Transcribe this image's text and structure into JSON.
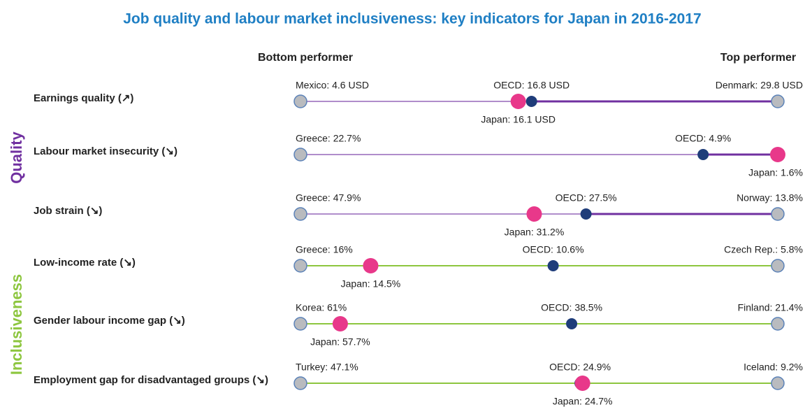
{
  "title": "Job quality and labour market inclusiveness: key indicators for Japan in 2016-2017",
  "bottom_header": "Bottom performer",
  "top_header": "Top performer",
  "groups": [
    {
      "name": "Quality",
      "color": "#7030a0",
      "rows": [
        {
          "label": "Earnings quality (↗)",
          "bottom": {
            "label": "Mexico: 4.6 USD",
            "value": 4.6
          },
          "top": {
            "label": "Denmark: 29.8 USD",
            "value": 29.8
          },
          "oecd": {
            "label": "OECD: 16.8 USD",
            "value": 16.8
          },
          "japan": {
            "label": "Japan: 16.1 USD",
            "value": 16.1
          }
        },
        {
          "label": "Labour market insecurity (↘)",
          "bottom": {
            "label": "Greece: 22.7%",
            "value": 22.7
          },
          "oecd": {
            "label": "OECD: 4.9%",
            "value": 4.9
          },
          "japan": {
            "label": "Japan: 1.6%",
            "value": 1.6
          }
        },
        {
          "label": "Job strain (↘)",
          "bottom": {
            "label": "Greece: 47.9%",
            "value": 47.9
          },
          "top": {
            "label": "Norway: 13.8%",
            "value": 13.8
          },
          "oecd": {
            "label": "OECD: 27.5%",
            "value": 27.5
          },
          "japan": {
            "label": "Japan: 31.2%",
            "value": 31.2
          }
        }
      ]
    },
    {
      "name": "Inclusiveness",
      "color": "#8dc63f",
      "rows": [
        {
          "label": "Low-income rate (↘)",
          "bottom": {
            "label": "Greece: 16%",
            "value": 16
          },
          "top": {
            "label": "Czech Rep.: 5.8%",
            "value": 5.8
          },
          "oecd": {
            "label": "OECD: 10.6%",
            "value": 10.6
          },
          "japan": {
            "label": "Japan: 14.5%",
            "value": 14.5
          }
        },
        {
          "label": "Gender labour income gap (↘)",
          "bottom": {
            "label": "Korea: 61%",
            "value": 61
          },
          "top": {
            "label": "Finland: 21.4%",
            "value": 21.4
          },
          "oecd": {
            "label": "OECD: 38.5%",
            "value": 38.5
          },
          "japan": {
            "label": "Japan: 57.7%",
            "value": 57.7
          }
        },
        {
          "label": "Employment gap for disadvantaged groups (↘)",
          "bottom": {
            "label": "Turkey: 47.1%",
            "value": 47.1
          },
          "top": {
            "label": "Iceland: 9.2%",
            "value": 9.2
          },
          "oecd": {
            "label": "OECD: 24.9%",
            "value": 24.9
          },
          "japan": {
            "label": "Japan: 24.7%",
            "value": 24.7
          }
        }
      ]
    }
  ]
}
